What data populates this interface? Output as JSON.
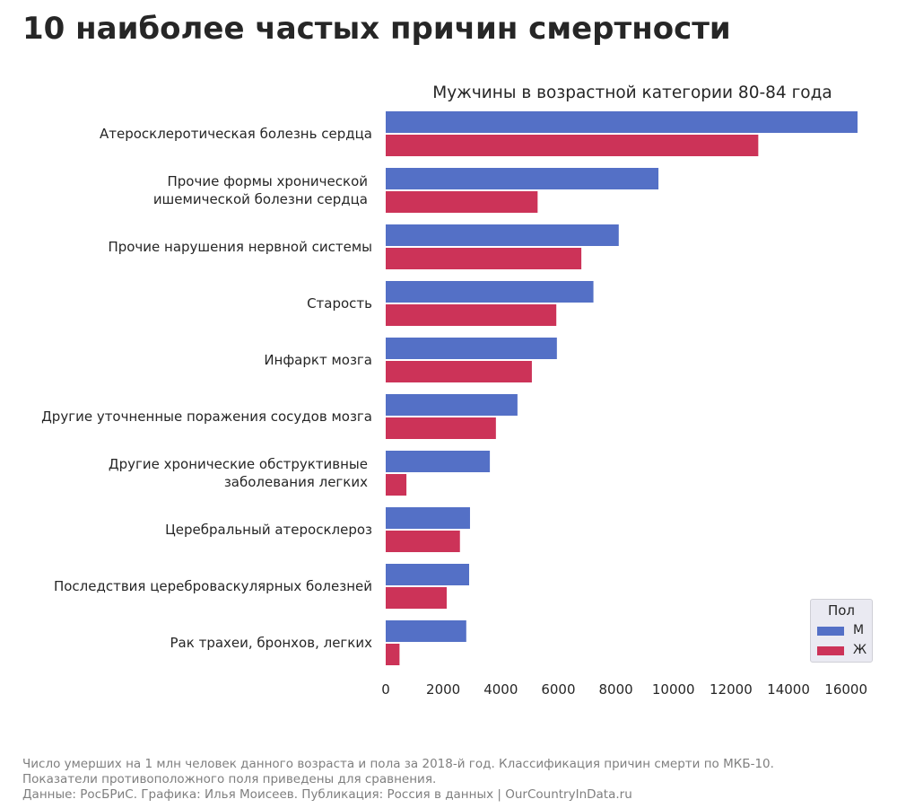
{
  "title": "10 наиболее частых причин смертности",
  "footnotes": [
    "Число умерших на 1 млн человек данного возраста и пола за 2018-й год. Классификация причин смерти по МКБ-10.",
    "Показатели противоположного поля приведены для сравнения.",
    "Данные: РосБРиС. Графика: Илья Моисеев. Публикация: Россия в данных | OurCountryInData.ru"
  ],
  "colors": {
    "male": "#5470c6",
    "female": "#cc3358",
    "text": "#262626",
    "muted": "#7f7f7f"
  },
  "chart_data": {
    "type": "bar",
    "orientation": "horizontal",
    "title": "Мужчины в возрастной категории 80-84 года",
    "categories": [
      [
        "Атеросклеротическая болезнь сердца"
      ],
      [
        "Прочие формы хронической",
        "ишемической болезни сердца"
      ],
      [
        "Прочие нарушения нервной системы"
      ],
      [
        "Старость"
      ],
      [
        "Инфаркт мозга"
      ],
      [
        "Другие уточненные поражения сосудов мозга"
      ],
      [
        "Другие хронические обструктивные",
        "заболевания легких"
      ],
      [
        "Церебральный атеросклероз"
      ],
      [
        "Последствия цереброваскулярных болезней"
      ],
      [
        "Рак трахеи, бронхов, легких"
      ]
    ],
    "series": [
      {
        "name": "М",
        "color": "#5470c6",
        "values": [
          16400,
          9480,
          8100,
          7220,
          5950,
          4580,
          3620,
          2930,
          2900,
          2800
        ]
      },
      {
        "name": "Ж",
        "color": "#cc3358",
        "values": [
          12950,
          5280,
          6800,
          5930,
          5080,
          3830,
          720,
          2580,
          2120,
          480
        ]
      }
    ],
    "xlim": [
      0,
      16400
    ],
    "xticks": [
      0,
      2000,
      4000,
      6000,
      8000,
      10000,
      12000,
      14000,
      16000
    ],
    "legend": {
      "title": "Пол",
      "position": "lower right"
    },
    "grid": false
  }
}
